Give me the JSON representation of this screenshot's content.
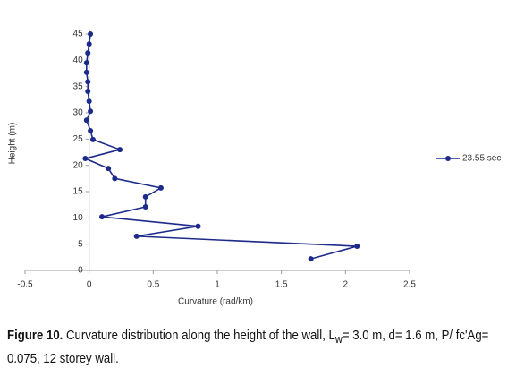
{
  "chart_data": {
    "type": "line",
    "xlabel": "Curvature (rad/km)",
    "ylabel": "Height (m)",
    "series": [
      {
        "name": "23.55 sec",
        "color": "#1c2a8a",
        "x": [
          1.73,
          2.09,
          0.37,
          0.85,
          0.1,
          0.44,
          0.44,
          0.56,
          0.2,
          0.15,
          -0.03,
          0.24,
          0.03,
          0.01,
          -0.02,
          0.01,
          0,
          -0.01,
          -0.01,
          -0.02,
          -0.02,
          -0.01,
          0,
          0.01
        ],
        "values": [
          2.2,
          4.6,
          6.5,
          8.4,
          10.2,
          12.1,
          14.0,
          15.7,
          17.5,
          19.4,
          21.3,
          23.0,
          24.9,
          26.6,
          28.6,
          30.3,
          32.2,
          34.1,
          35.9,
          37.7,
          39.5,
          41.4,
          43.1,
          45
        ]
      }
    ],
    "xlim": [
      -0.5,
      2.5
    ],
    "xticks": [
      -0.5,
      0,
      0.5,
      1,
      1.5,
      2,
      2.5
    ],
    "ylim": [
      0,
      45
    ],
    "yticks": [
      0,
      5,
      10,
      15,
      20,
      25,
      30,
      35,
      40,
      45
    ],
    "grid": false,
    "legend": "right"
  },
  "caption": {
    "label": "Figure 10.",
    "text": " Curvature distribution along the height of the wall, L",
    "subscript": "w",
    "rest": "= 3.0 m, d= 1.6 m, P/ fc'Ag= 0.075, 12 storey wall."
  }
}
